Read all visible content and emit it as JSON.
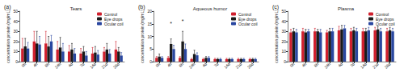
{
  "chart_data": [
    {
      "type": "bar",
      "label": "(a)",
      "title": "Tears",
      "y_label": "concentration protein (mg/mL)",
      "categories": [
        "0h",
        "4h",
        "8h",
        "24h",
        "4d",
        "7d",
        "14d",
        "21d",
        "28d"
      ],
      "series": [
        {
          "name": "Control",
          "color": "#d0202e",
          "values": [
            13,
            20,
            18,
            12,
            10,
            8,
            8,
            10,
            12
          ],
          "errors": [
            10,
            10,
            12,
            8,
            6,
            5,
            6,
            4,
            8
          ]
        },
        {
          "name": "Eye drops",
          "color": "#1a1a1a",
          "values": [
            15,
            18,
            15,
            14,
            12,
            10,
            9,
            12,
            10
          ],
          "errors": [
            8,
            12,
            10,
            10,
            6,
            5,
            6,
            6,
            4
          ]
        },
        {
          "name": "Ocular coil",
          "color": "#2a47a0",
          "values": [
            13,
            17,
            20,
            10,
            8,
            6,
            7,
            8,
            6
          ],
          "errors": [
            6,
            8,
            6,
            8,
            5,
            4,
            4,
            4,
            3
          ]
        }
      ],
      "ylim": [
        0,
        50
      ],
      "yticks": [
        0,
        10,
        20,
        30,
        40,
        50
      ],
      "grid": false,
      "legend": "top-right"
    },
    {
      "type": "bar",
      "label": "(b)",
      "title": "Aqueous humor",
      "y_label": "concentration protein (mg/mL)",
      "categories": [
        "0h",
        "4h",
        "8h",
        "24h",
        "4d",
        "7d",
        "14d",
        "21d",
        "28d"
      ],
      "series": [
        {
          "name": "Control",
          "color": "#d0202e",
          "values": [
            1.5,
            1.5,
            1.5,
            1,
            1,
            1,
            1,
            1,
            1
          ],
          "errors": [
            0.5,
            0.5,
            0.5,
            0.3,
            0.3,
            0.3,
            0.3,
            0.3,
            0.3
          ]
        },
        {
          "name": "Eye drops",
          "color": "#1a1a1a",
          "values": [
            2,
            7,
            8,
            3,
            1.5,
            1,
            1,
            1,
            1
          ],
          "errors": [
            1,
            2,
            4,
            1.5,
            0.5,
            0.3,
            0.3,
            0.3,
            0.3
          ]
        },
        {
          "name": "Ocular coil",
          "color": "#2a47a0",
          "values": [
            1.5,
            5,
            5,
            2.5,
            1.5,
            1,
            1,
            1,
            1
          ],
          "errors": [
            0.5,
            1.5,
            2,
            1,
            0.5,
            0.3,
            0.3,
            0.3,
            0.3
          ]
        }
      ],
      "annotations": [
        {
          "text": "*",
          "category": "4h",
          "y": 14
        },
        {
          "text": "*",
          "category": "8h",
          "y": 15
        }
      ],
      "ylim": [
        0,
        20
      ],
      "yticks": [
        0,
        5,
        10,
        15,
        20
      ],
      "grid": false,
      "legend": "top-right"
    },
    {
      "type": "bar",
      "label": "(c)",
      "title": "Plasma",
      "y_label": "concentration protein (mg/mL)",
      "categories": [
        "0h",
        "4h",
        "8h",
        "24h",
        "4d",
        "7d",
        "14d",
        "21d",
        "28d"
      ],
      "series": [
        {
          "name": "Control",
          "color": "#d0202e",
          "values": [
            29,
            30,
            30,
            29,
            31,
            30,
            30,
            31,
            30
          ],
          "errors": [
            3,
            3,
            3,
            2,
            4,
            3,
            3,
            3,
            3
          ]
        },
        {
          "name": "Eye drops",
          "color": "#1a1a1a",
          "values": [
            30,
            29,
            30,
            30,
            32,
            31,
            30,
            32,
            31
          ],
          "errors": [
            3,
            3,
            2,
            3,
            4,
            3,
            3,
            3,
            3
          ]
        },
        {
          "name": "Ocular coil",
          "color": "#2a47a0",
          "values": [
            29,
            30,
            29,
            30,
            33,
            30,
            31,
            30,
            30
          ],
          "errors": [
            3,
            2,
            3,
            3,
            3,
            3,
            3,
            3,
            3
          ]
        }
      ],
      "ylim": [
        0,
        50
      ],
      "yticks": [
        0,
        10,
        20,
        30,
        40,
        50
      ],
      "grid": false,
      "legend": "top-right"
    }
  ]
}
